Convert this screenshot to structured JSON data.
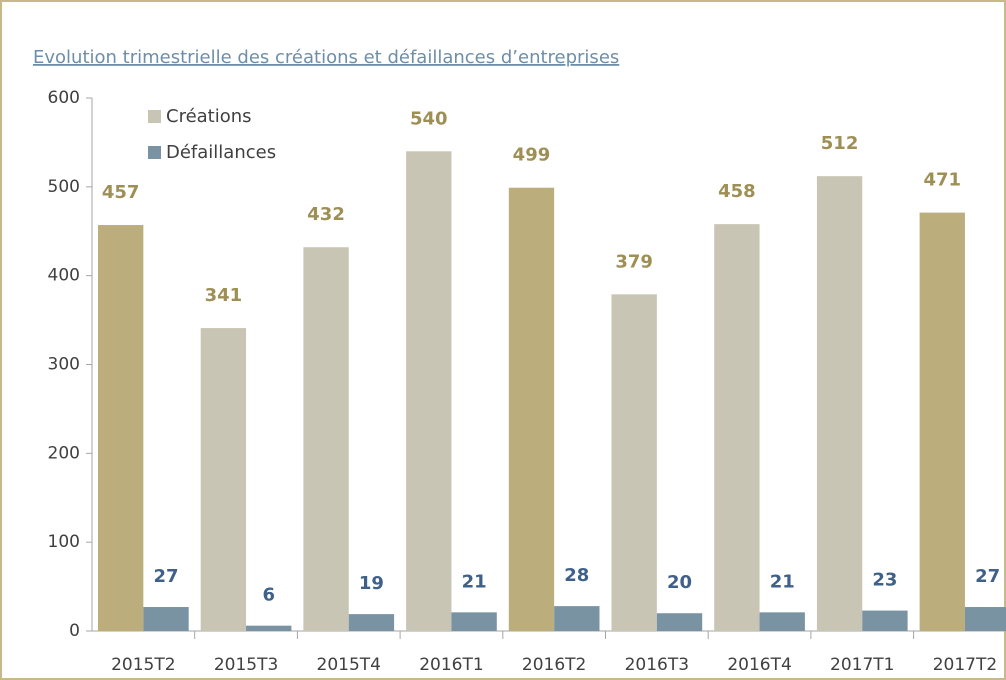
{
  "chart_data": {
    "type": "bar",
    "title": "Evolution trimestrielle des créations et défaillances d’entreprises",
    "categories": [
      "2015T2",
      "2015T3",
      "2015T4",
      "2016T1",
      "2016T2",
      "2016T3",
      "2016T4",
      "2017T1",
      "2017T2"
    ],
    "series": [
      {
        "name": "Créations",
        "color": "#c9c5b5",
        "label_color": "#9e8f55",
        "point_colors": [
          "#bcae7c",
          "#c9c5b5",
          "#c9c5b5",
          "#c9c5b5",
          "#bcae7c",
          "#c9c5b5",
          "#c9c5b5",
          "#c9c5b5",
          "#bcae7c"
        ],
        "values": [
          457,
          341,
          432,
          540,
          499,
          379,
          458,
          512,
          471
        ]
      },
      {
        "name": "Défaillances",
        "color": "#7a93a3",
        "label_color": "#3f6189",
        "values": [
          27,
          6,
          19,
          21,
          28,
          20,
          21,
          23,
          27
        ]
      }
    ],
    "ylim": [
      0,
      600
    ],
    "yticks": [
      0,
      100,
      200,
      300,
      400,
      500,
      600
    ],
    "legend": "top-left"
  }
}
